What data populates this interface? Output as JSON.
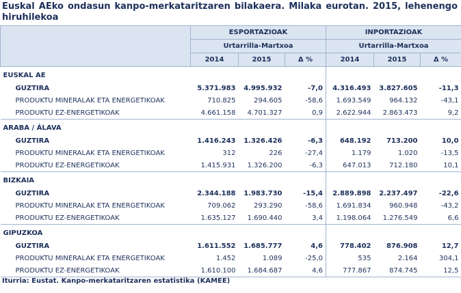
{
  "title": "Euskal AEko ondasun kanpo-merkataritzaren bilakaera. Milaka eurotan. 2015, lehenengo hiruhilekoa",
  "header": {
    "groups": [
      "ESPORTAZIOAK",
      "INPORTAZIOAK"
    ],
    "period": "Urtarrilla-Martxoa",
    "columns": [
      "2014",
      "2015",
      "Δ %"
    ]
  },
  "sections": [
    {
      "name": "EUSKAL AE",
      "rows": [
        [
          "GUZTIRA",
          "5.371.983",
          "4.995.932",
          "-7,0",
          "4.316.493",
          "3.827.605",
          "-11,3"
        ],
        [
          "PRODUKTU MINERALAK ETA ENERGETIKOAK",
          "710.825",
          "294.605",
          "-58,6",
          "1.693.549",
          "964.132",
          "-43,1"
        ],
        [
          "PRODUKTU EZ-ENERGETIKOAK",
          "4.661.158",
          "4.701.327",
          "0,9",
          "2.622.944",
          "2.863.473",
          "9,2"
        ]
      ]
    },
    {
      "name": "ARABA / ÁLAVA",
      "rows": [
        [
          "GUZTIRA",
          "1.416.243",
          "1.326.426",
          "-6,3",
          "648.192",
          "713.200",
          "10,0"
        ],
        [
          "PRODUKTU MINERALAK ETA ENERGETIKOAK",
          "312",
          "226",
          "-27,4",
          "1.179",
          "1.020",
          "-13,5"
        ],
        [
          "PRODUKTU EZ-ENERGETIKOAK",
          "1.415.931",
          "1.326.200",
          "-6,3",
          "647.013",
          "712.180",
          "10,1"
        ]
      ]
    },
    {
      "name": "BIZKAIA",
      "rows": [
        [
          "GUZTIRA",
          "2.344.188",
          "1.983.730",
          "-15,4",
          "2.889.898",
          "2.237.497",
          "-22,6"
        ],
        [
          "PRODUKTU MINERALAK ETA ENERGETIKOAK",
          "709.062",
          "293.290",
          "-58,6",
          "1.691.834",
          "960.948",
          "-43,2"
        ],
        [
          "PRODUKTU EZ-ENERGETIKOAK",
          "1.635.127",
          "1.690.440",
          "3,4",
          "1.198.064",
          "1.276.549",
          "6,6"
        ]
      ]
    },
    {
      "name": "GIPUZKOA",
      "rows": [
        [
          "GUZTIRA",
          "1.611.552",
          "1.685.777",
          "4,6",
          "778.402",
          "876.908",
          "12,7"
        ],
        [
          "PRODUKTU MINERALAK ETA ENERGETIKOAK",
          "1.452",
          "1.089",
          "-25,0",
          "535",
          "2.164",
          "304,1"
        ],
        [
          "PRODUKTU EZ-ENERGETIKOAK",
          "1.610.100",
          "1.684.687",
          "4,6",
          "777.867",
          "874.745",
          "12,5"
        ]
      ]
    }
  ],
  "source": "Iturria: Eustat. Kanpo-merkataritzaren estatistika (KAMEE)"
}
